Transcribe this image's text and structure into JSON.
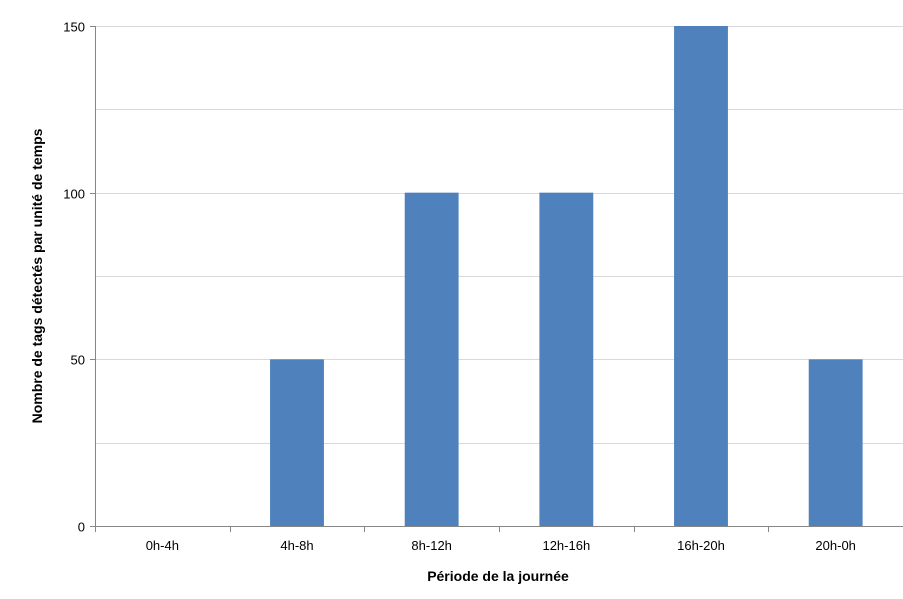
{
  "chart_data": {
    "type": "bar",
    "title": "",
    "xlabel": "Période de la journée",
    "ylabel": "Nombre de tags détectés par unité de temps",
    "categories": [
      "0h-4h",
      "4h-8h",
      "8h-12h",
      "12h-16h",
      "16h-20h",
      "20h-0h"
    ],
    "values": [
      0,
      50,
      100,
      100,
      150,
      50
    ],
    "ylim": [
      0,
      150
    ],
    "yticks": [
      0,
      50,
      100,
      150
    ],
    "grid": true,
    "legend": "none",
    "colors": {
      "bar": "#4f81bd",
      "grid": "#d9d9d9",
      "axis": "#868686"
    }
  }
}
